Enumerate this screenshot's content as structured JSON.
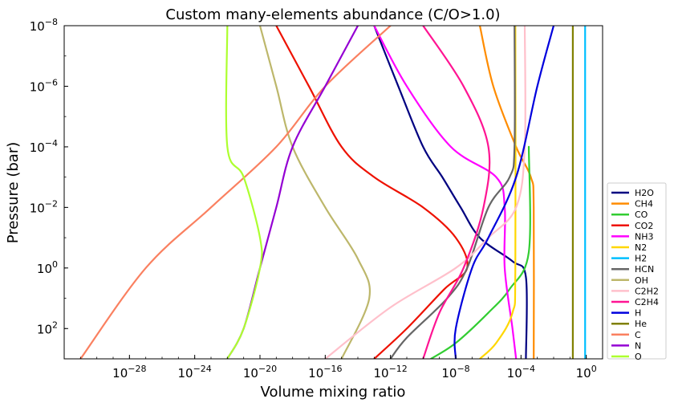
{
  "chart_data": {
    "type": "line",
    "title": "Custom many-elements abundance (C/O>1.0)",
    "xlabel": "Volume mixing ratio",
    "ylabel": "Pressure (bar)",
    "xscale": "log",
    "yscale": "log",
    "xlim": [
      1e-32,
      10
    ],
    "ylim": [
      1000,
      1e-08
    ],
    "y_inverted": true,
    "legend_position": "lower right",
    "grid": false,
    "xticks": [
      {
        "value": 1e-28,
        "base": "10",
        "exp": "−28"
      },
      {
        "value": 1e-24,
        "base": "10",
        "exp": "−24"
      },
      {
        "value": 1e-20,
        "base": "10",
        "exp": "−20"
      },
      {
        "value": 1e-16,
        "base": "10",
        "exp": "−16"
      },
      {
        "value": 1e-12,
        "base": "10",
        "exp": "−12"
      },
      {
        "value": 1e-08,
        "base": "10",
        "exp": "−8"
      },
      {
        "value": 0.0001,
        "base": "10",
        "exp": "−4"
      },
      {
        "value": 1,
        "base": "10",
        "exp": "0"
      }
    ],
    "yticks": [
      {
        "value": 1e-08,
        "base": "10",
        "exp": "−8"
      },
      {
        "value": 1e-06,
        "base": "10",
        "exp": "−6"
      },
      {
        "value": 0.0001,
        "base": "10",
        "exp": "−4"
      },
      {
        "value": 0.01,
        "base": "10",
        "exp": "−2"
      },
      {
        "value": 1,
        "base": "10",
        "exp": "0"
      },
      {
        "value": 100,
        "base": "10",
        "exp": "2"
      }
    ],
    "series": [
      {
        "name": "H2O",
        "color": "#000080",
        "points": [
          [
            1e-13,
            1e-08
          ],
          [
            3e-12,
            1e-06
          ],
          [
            1e-10,
            0.0001
          ],
          [
            1.5e-09,
            0.001
          ],
          [
            2e-08,
            0.01
          ],
          [
            3e-07,
            0.1
          ],
          [
            3e-05,
            0.6
          ],
          [
            0.0002,
            2
          ],
          [
            0.0002,
            1000
          ]
        ]
      },
      {
        "name": "CH4",
        "color": "#ff8c00",
        "points": [
          [
            3e-07,
            1e-08
          ],
          [
            2e-06,
            1e-06
          ],
          [
            5e-05,
            0.0001
          ],
          [
            0.0004,
            0.001
          ],
          [
            0.0006,
            0.01
          ],
          [
            0.0006,
            1000
          ]
        ]
      },
      {
        "name": "CO",
        "color": "#32cd32",
        "points": [
          [
            0.0003,
            0.0001
          ],
          [
            0.0003,
            0.3
          ],
          [
            2e-05,
            5
          ],
          [
            1e-06,
            30
          ],
          [
            1e-08,
            300
          ],
          [
            3e-10,
            1000
          ]
        ]
      },
      {
        "name": "CO2",
        "color": "#ee1100",
        "points": [
          [
            1e-19,
            1e-08
          ],
          [
            1e-17,
            1e-06
          ],
          [
            1e-15,
            0.0001
          ],
          [
            1e-13,
            0.001
          ],
          [
            1e-10,
            0.01
          ],
          [
            1e-08,
            0.1
          ],
          [
            5e-08,
            1
          ],
          [
            2e-09,
            5
          ],
          [
            1e-11,
            100
          ],
          [
            1e-13,
            1000
          ]
        ]
      },
      {
        "name": "NH3",
        "color": "#ff00ff",
        "points": [
          [
            1e-13,
            1e-08
          ],
          [
            1e-11,
            1e-06
          ],
          [
            5e-09,
            0.0001
          ],
          [
            3e-06,
            0.001
          ],
          [
            1e-05,
            0.01
          ],
          [
            1e-05,
            1
          ],
          [
            3e-05,
            100
          ],
          [
            5e-05,
            1000
          ]
        ]
      },
      {
        "name": "N2",
        "color": "#ffd700",
        "points": [
          [
            4.5e-05,
            1e-08
          ],
          [
            4.5e-05,
            1
          ],
          [
            3e-05,
            30
          ],
          [
            3e-06,
            300
          ],
          [
            3e-07,
            1000
          ]
        ]
      },
      {
        "name": "H2",
        "color": "#00bfff",
        "points": [
          [
            0.85,
            1e-08
          ],
          [
            0.85,
            1000
          ]
        ]
      },
      {
        "name": "HCN",
        "color": "#666666",
        "points": [
          [
            4e-05,
            1e-08
          ],
          [
            4e-05,
            0.0001
          ],
          [
            2e-05,
            0.001
          ],
          [
            1e-06,
            0.01
          ],
          [
            5e-08,
            1
          ],
          [
            3e-09,
            10
          ],
          [
            1e-11,
            200
          ],
          [
            1e-12,
            1000
          ]
        ]
      },
      {
        "name": "OH",
        "color": "#bdb76b",
        "points": [
          [
            1e-20,
            1e-08
          ],
          [
            1e-19,
            1e-06
          ],
          [
            1e-18,
            0.0001
          ],
          [
            1e-16,
            0.01
          ],
          [
            1e-14,
            0.5
          ],
          [
            5e-14,
            10
          ],
          [
            1e-15,
            1000
          ]
        ]
      },
      {
        "name": "C2H2",
        "color": "#ffc0cb",
        "points": [
          [
            0.00017,
            1e-08
          ],
          [
            0.00017,
            0.0001
          ],
          [
            5e-05,
            0.01
          ],
          [
            1e-06,
            0.1
          ],
          [
            1e-08,
            1
          ],
          [
            1e-12,
            20
          ],
          [
            1e-16,
            1000
          ]
        ]
      },
      {
        "name": "C2H4",
        "color": "#ff1493",
        "points": [
          [
            1e-10,
            1e-08
          ],
          [
            3e-08,
            1e-06
          ],
          [
            1e-06,
            0.0001
          ],
          [
            5e-07,
            0.01
          ],
          [
            3e-08,
            1
          ],
          [
            1e-09,
            30
          ],
          [
            1e-10,
            1000
          ]
        ]
      },
      {
        "name": "H",
        "color": "#0000dd",
        "points": [
          [
            0.01,
            1e-08
          ],
          [
            0.001,
            1e-06
          ],
          [
            5e-05,
            0.001
          ],
          [
            1e-06,
            0.1
          ],
          [
            1e-07,
            1
          ],
          [
            1e-08,
            100
          ],
          [
            1e-08,
            1000
          ]
        ]
      },
      {
        "name": "He",
        "color": "#808000",
        "points": [
          [
            0.15,
            1e-08
          ],
          [
            0.15,
            1000
          ]
        ]
      },
      {
        "name": "C",
        "color": "#fa8060",
        "points": [
          [
            1e-12,
            1e-08
          ],
          [
            1e-16,
            1e-06
          ],
          [
            1e-19,
            0.0001
          ],
          [
            1e-23,
            0.01
          ],
          [
            1e-27,
            1
          ],
          [
            1e-31,
            1000
          ]
        ]
      },
      {
        "name": "N",
        "color": "#9400d3",
        "points": [
          [
            1e-14,
            1e-08
          ],
          [
            1e-16,
            1e-06
          ],
          [
            1e-18,
            0.0001
          ],
          [
            1e-19,
            0.01
          ],
          [
            1e-20,
            1
          ],
          [
            1e-21,
            100
          ],
          [
            1e-22,
            1000
          ]
        ]
      },
      {
        "name": "O",
        "color": "#adff2f",
        "points": [
          [
            1e-22,
            1e-08
          ],
          [
            1e-22,
            0.0001
          ],
          [
            1e-21,
            0.001
          ],
          [
            1e-20,
            0.1
          ],
          [
            1e-20,
            1
          ],
          [
            1e-21,
            100
          ],
          [
            1e-22,
            1000
          ]
        ]
      }
    ]
  }
}
